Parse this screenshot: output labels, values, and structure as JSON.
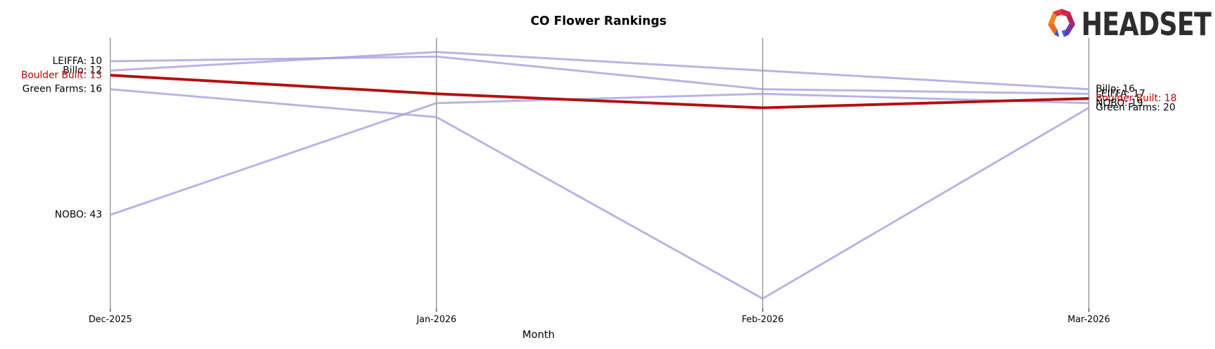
{
  "header": {
    "logo_text": "HEADSET",
    "logo_colors": {
      "left": "#F5821F",
      "lower_left": "#EF6A1E",
      "top_left": "#E8353C",
      "top_right": "#D6224A",
      "right_upper": "#BA2058",
      "right_lower": "#7C2F9D",
      "right_foot": "#4439C0",
      "right_foot_inner": "#3E63E8",
      "left_foot": "#3C50D0",
      "wordmark": "#2D2D2D"
    }
  },
  "chart_data": {
    "type": "line",
    "variant": "bump-rank-chart",
    "title": "CO Flower Rankings",
    "xlabel": "Month",
    "categories": [
      "Dec-2025",
      "Jan-2026",
      "Feb-2026",
      "Mar-2026"
    ],
    "y_axis": {
      "type": "rank",
      "inverted": true,
      "visible_ticks": [],
      "note": "lower rank value drawn higher; labels shown only at line endpoints"
    },
    "series": [
      {
        "name": "LEIFFA",
        "values": [
          10,
          9,
          16,
          17
        ],
        "highlight": false,
        "start_label": "LEIFFA: 10",
        "end_label": "LEIFFA: 17"
      },
      {
        "name": "Billo",
        "values": [
          12,
          8,
          12,
          16
        ],
        "highlight": false,
        "start_label": "Billo: 12",
        "end_label": "Billo: 16"
      },
      {
        "name": "Boulder Built",
        "values": [
          13,
          17,
          20,
          18
        ],
        "highlight": true,
        "start_label": "Boulder Built: 13",
        "end_label": "Boulder Built: 18"
      },
      {
        "name": "NOBO",
        "values": [
          43,
          19,
          17,
          19
        ],
        "highlight": false,
        "start_label": "NOBO: 43",
        "end_label": "NOBO: 19"
      },
      {
        "name": "Green Farms",
        "values": [
          16,
          22,
          61,
          20
        ],
        "highlight": false,
        "start_label": "Green Farms: 16",
        "end_label": "Green Farms: 20"
      }
    ],
    "colors": {
      "series_default": "#a49dde",
      "series_highlight": "#b40f0f",
      "highlight_label": "#c00000",
      "label_text": "#000000",
      "grid": "#b3b3b3",
      "tick": "#000000"
    },
    "legend": "none",
    "grid": "vertical-only"
  }
}
